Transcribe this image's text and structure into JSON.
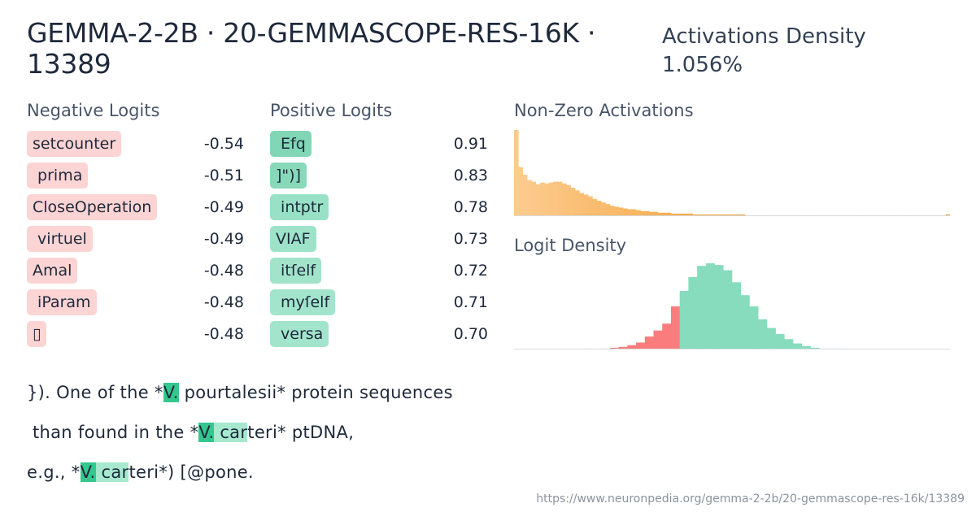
{
  "header": {
    "title": "GEMMA-2-2B · 20-GEMMASCOPE-RES-16K · 13389",
    "density_label": "Activations Density",
    "density_value": "1.056%"
  },
  "negative_logits": {
    "label": "Negative Logits",
    "items": [
      {
        "token": "setcounter",
        "value": "-0.54"
      },
      {
        "token": " prima",
        "value": "-0.51"
      },
      {
        "token": "CloseOperation",
        "value": "-0.49"
      },
      {
        "token": " virtuel",
        "value": "-0.49"
      },
      {
        "token": "Amal",
        "value": "-0.48"
      },
      {
        "token": " iParam",
        "value": "-0.48"
      },
      {
        "token": "▯",
        "value": "-0.48"
      }
    ]
  },
  "positive_logits": {
    "label": "Positive Logits",
    "items": [
      {
        "token": " Efq",
        "value": "0.91",
        "intensity": 1.0
      },
      {
        "token": "]\")]",
        "value": "0.83",
        "intensity": 0.85
      },
      {
        "token": " intptr",
        "value": "0.78",
        "intensity": 0.5
      },
      {
        "token": "VIAF",
        "value": "0.73",
        "intensity": 0.4
      },
      {
        "token": " itſelf",
        "value": "0.72",
        "intensity": 0.35
      },
      {
        "token": " myſelf",
        "value": "0.71",
        "intensity": 0.3
      },
      {
        "token": " versa",
        "value": "0.70",
        "intensity": 0.3
      }
    ]
  },
  "activations_chart": {
    "label": "Non-Zero Activations",
    "color_light": "#fdcb8f",
    "color_dark": "#f2a33a",
    "values": [
      100,
      57,
      48,
      42,
      40,
      37,
      39,
      38,
      39,
      40,
      40,
      38,
      36,
      33,
      30,
      27,
      25,
      23,
      20,
      18,
      16,
      14,
      12,
      11,
      10,
      9,
      8,
      8,
      7,
      6,
      6,
      5,
      5,
      4,
      4,
      4,
      3,
      3,
      3,
      3,
      3,
      2,
      2,
      2,
      2,
      2,
      2,
      2,
      2,
      2,
      2,
      2,
      2,
      1,
      1,
      1,
      1,
      1,
      1,
      1,
      1,
      1,
      1,
      1,
      1,
      1,
      1,
      1,
      1,
      1,
      1,
      1,
      1,
      1,
      1,
      1,
      1,
      1,
      1,
      1,
      1,
      1,
      1,
      1,
      1,
      1,
      1,
      1,
      1,
      1,
      1,
      1,
      1,
      0.5,
      0.5,
      0.5,
      0.5,
      1,
      1,
      2
    ]
  },
  "logit_density_chart": {
    "label": "Logit Density",
    "neg_color": "#fb7c7c",
    "pos_color": "#86dcbc",
    "split_index": 19,
    "values": [
      0,
      0,
      0,
      0,
      0,
      0,
      0,
      0,
      1,
      0,
      1,
      2,
      3,
      5,
      8,
      15,
      22,
      30,
      50,
      68,
      84,
      97,
      100,
      98,
      92,
      78,
      63,
      50,
      35,
      25,
      18,
      12,
      7,
      4,
      2,
      1,
      1,
      1,
      0,
      0,
      0,
      0,
      0,
      0,
      0,
      0,
      0,
      0,
      0,
      0
    ]
  },
  "example_text": {
    "lines": [
      [
        {
          "text": "}). One of the *",
          "hl": ""
        },
        {
          "text": "V.",
          "hl": "strong"
        },
        {
          "text": " pourtalesii* protein sequences",
          "hl": ""
        }
      ],
      [
        {
          "text": " than found in the *",
          "hl": ""
        },
        {
          "text": "V.",
          "hl": "strong"
        },
        {
          "text": " car",
          "hl": "light"
        },
        {
          "text": "teri* ptDNA,",
          "hl": ""
        }
      ],
      [
        {
          "text": "e.g., *",
          "hl": ""
        },
        {
          "text": "V.",
          "hl": "strong"
        },
        {
          "text": " car",
          "hl": "light"
        },
        {
          "text": "teri*) [@pone.",
          "hl": ""
        }
      ]
    ]
  },
  "footer": {
    "url": "https://www.neuronpedia.org/gemma-2-2b/20-gemmascope-res-16k/13389"
  }
}
